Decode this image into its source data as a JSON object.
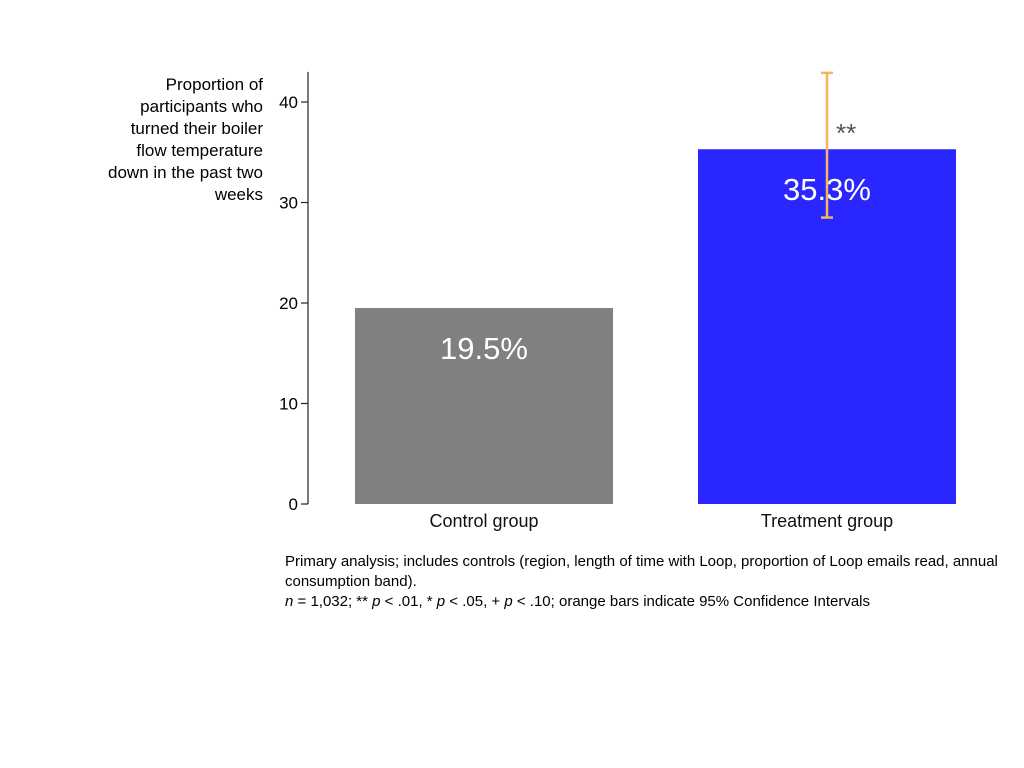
{
  "chart_data": {
    "type": "bar",
    "ylabel": "Proportion of participants who turned their boiler flow temperature down in the past two weeks",
    "xlabel": "",
    "ylim": [
      0,
      43
    ],
    "yticks": [
      0,
      10,
      20,
      30,
      40
    ],
    "categories": [
      "Control group",
      "Treatment group"
    ],
    "values": [
      19.5,
      35.3
    ],
    "value_labels": [
      "19.5%",
      "35.3%"
    ],
    "bar_colors": [
      "#808080",
      "#2a26ff"
    ],
    "error_bars": [
      null,
      {
        "low": 28.5,
        "high": 42.9
      }
    ],
    "error_color": "#f5b55c",
    "significance": [
      "",
      "**"
    ],
    "grid": false
  },
  "footnote": {
    "line1": "Primary analysis; includes controls (region, length of time with Loop, proportion of Loop emails read, annual consumption band).",
    "n_label": "n",
    "n_text": " = 1,032; ** ",
    "p1": "p",
    "t1": " < .01, * ",
    "p2": "p",
    "t2": " < .05, + ",
    "p3": "p",
    "t3": " < .10; orange bars indicate 95% Confidence Intervals"
  }
}
